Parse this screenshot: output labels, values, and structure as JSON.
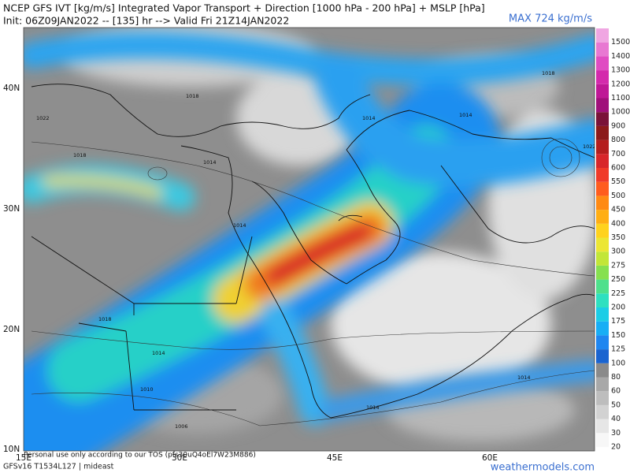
{
  "header": {
    "title": "NCEP GFS IVT [kg/m/s] Integrated Vapor Transport + Direction [1000 hPa - 200 hPa] + MSLP [hPa]",
    "init": "Init: 06Z09JAN2022 -- [135] hr --> Valid Fri 21Z14JAN2022",
    "max": "MAX 724 kg/m/s"
  },
  "colorbar": {
    "levels": [
      20,
      30,
      40,
      50,
      60,
      80,
      100,
      125,
      150,
      175,
      200,
      225,
      250,
      275,
      300,
      350,
      400,
      450,
      500,
      550,
      600,
      700,
      800,
      900,
      1000,
      1100,
      1200,
      1300,
      1400,
      1500
    ],
    "colors": [
      "#f7f7f7",
      "#e6e6e6",
      "#d2d2d2",
      "#bdbdbd",
      "#a8a8a8",
      "#8a8a8a",
      "#1a64d0",
      "#1f86f0",
      "#18aef5",
      "#1ccde6",
      "#2ee0c0",
      "#4ee08c",
      "#86e050",
      "#c2e638",
      "#ece634",
      "#ffd21e",
      "#ffae14",
      "#ff8a14",
      "#ff5c1e",
      "#f03a28",
      "#d8262a",
      "#b41e1e",
      "#8c1a1a",
      "#7a1238",
      "#a0107a",
      "#bf1896",
      "#d42aac",
      "#e04cc2",
      "#e878d2",
      "#f0a6e2"
    ]
  },
  "axes": {
    "lat": [
      "40N",
      "30N",
      "20N",
      "10N"
    ],
    "lon": [
      "15E",
      "30E",
      "45E",
      "60E"
    ]
  },
  "isobar_labels": [
    "1022",
    "1018",
    "1018",
    "1014",
    "1014",
    "1014",
    "1018",
    "1014",
    "1022",
    "1018",
    "1014",
    "1010",
    "1014",
    "1014",
    "1006"
  ],
  "footer": {
    "notice": "Personal use only according to our TOS (pfs30uQ4oEl7W23M886)",
    "model": "GFSv16 T1534L127 | mideast",
    "site": "weathermodels.com"
  }
}
